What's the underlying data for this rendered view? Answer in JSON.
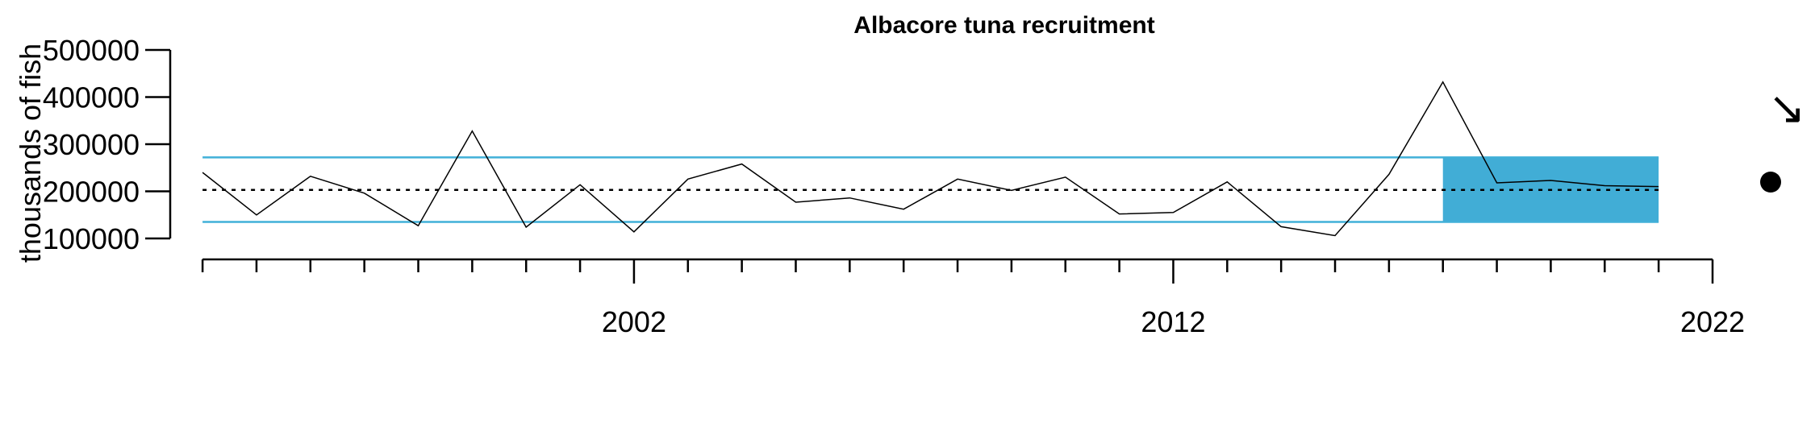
{
  "chart_data": {
    "type": "line",
    "title": "Albacore tuna recruitment",
    "ylabel": "thousands of fish",
    "xlabel": "",
    "xlim": [
      1993.4,
      2022
    ],
    "ylim": [
      100000,
      500000
    ],
    "y_ticks": [
      100000,
      200000,
      300000,
      400000,
      500000
    ],
    "y_tick_labels": [
      "100000",
      "200000",
      "300000",
      "400000",
      "500000"
    ],
    "x_major_ticks": [
      2002,
      2012,
      2022
    ],
    "x_major_tick_labels": [
      "2002",
      "2012",
      "2022"
    ],
    "x_minor_ticks": [
      1990,
      1991,
      1992,
      1993,
      1994,
      1995,
      1996,
      1997,
      1998,
      1999,
      2000,
      2001,
      2003,
      2004,
      2005,
      2006,
      2007,
      2008,
      2009,
      2010,
      2011,
      2013,
      2014,
      2015,
      2016,
      2017,
      2018,
      2019,
      2020,
      2021
    ],
    "series": [
      {
        "x": [
          1994,
          1995,
          1996,
          1997,
          1998,
          1999,
          2000,
          2001,
          2002,
          2003,
          2004,
          2005,
          2006,
          2007,
          2008,
          2009,
          2010,
          2011,
          2012,
          2013,
          2014,
          2015,
          2016,
          2017,
          2018,
          2019,
          2020,
          2021
        ],
        "values": [
          240000,
          150000,
          232000,
          196000,
          127000,
          328000,
          124000,
          214000,
          114000,
          226000,
          258000,
          177000,
          186000,
          162000,
          226000,
          202000,
          230000,
          152000,
          155000,
          220000,
          125000,
          106000,
          236000,
          432000,
          218000,
          223000,
          212000,
          210000
        ]
      }
    ],
    "mean_line": 203000,
    "upper_band": 272000,
    "lower_band": 135000,
    "shaded_region": {
      "x": [
        2017,
        2021
      ],
      "y": [
        135000,
        272000
      ]
    },
    "trend_symbol": "↘",
    "status_marker": "filled-circle",
    "colors": {
      "line": "#000000",
      "band": "#41b0d8",
      "shade": "#41add6",
      "mean": "#000000"
    },
    "grid": false,
    "legend": "none"
  }
}
